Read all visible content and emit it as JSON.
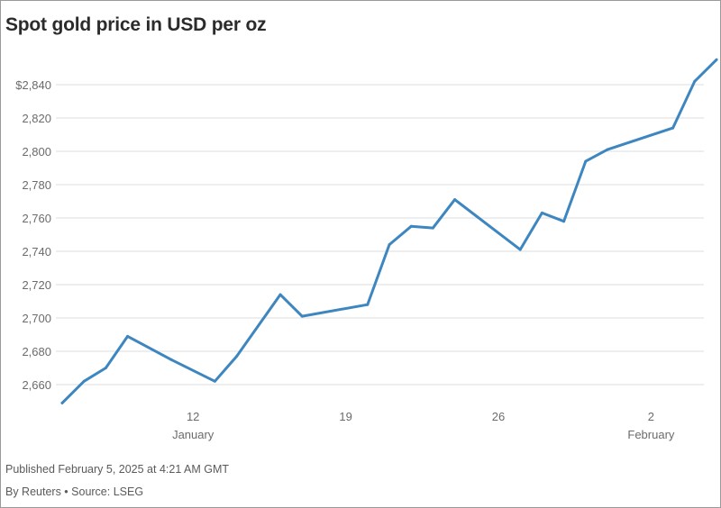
{
  "title": "Spot gold price in USD per oz",
  "footer": {
    "published": "Published February 5, 2025 at 4:21 AM GMT",
    "byline": "By Reuters • Source: LSEG"
  },
  "colors": {
    "line": "#3d86c0",
    "grid": "#e3e3e3",
    "text": "#6b6b6b"
  },
  "chart_data": {
    "type": "line",
    "title": "Spot gold price in USD per oz",
    "xlabel": "",
    "ylabel": "",
    "ylim": [
      2650,
      2857
    ],
    "grid": true,
    "y_ticks": [
      2660,
      2680,
      2700,
      2720,
      2740,
      2760,
      2780,
      2800,
      2820,
      2840
    ],
    "y_tick_labels": [
      "2,660",
      "2,680",
      "2,700",
      "2,720",
      "2,740",
      "2,760",
      "2,780",
      "2,800",
      "2,820",
      "$2,840"
    ],
    "x_ticks": [
      {
        "x": "2025-01-12",
        "label": "12",
        "sublabel": "January"
      },
      {
        "x": "2025-01-19",
        "label": "19",
        "sublabel": ""
      },
      {
        "x": "2025-01-26",
        "label": "26",
        "sublabel": ""
      },
      {
        "x": "2025-02-02",
        "label": "2",
        "sublabel": "February"
      }
    ],
    "series": [
      {
        "x": [
          "2025-01-06",
          "2025-01-07",
          "2025-01-08",
          "2025-01-09",
          "2025-01-11",
          "2025-01-13",
          "2025-01-14",
          "2025-01-16",
          "2025-01-17",
          "2025-01-20",
          "2025-01-21",
          "2025-01-22",
          "2025-01-23",
          "2025-01-24",
          "2025-01-27",
          "2025-01-28",
          "2025-01-29",
          "2025-01-30",
          "2025-01-31",
          "2025-02-03",
          "2025-02-04",
          "2025-02-05"
        ],
        "values": [
          2649,
          2662,
          2670,
          2689,
          2675,
          2662,
          2677,
          2714,
          2701,
          2708,
          2744,
          2755,
          2754,
          2771,
          2741,
          2763,
          2758,
          2794,
          2801,
          2814,
          2842,
          2855
        ]
      }
    ]
  }
}
